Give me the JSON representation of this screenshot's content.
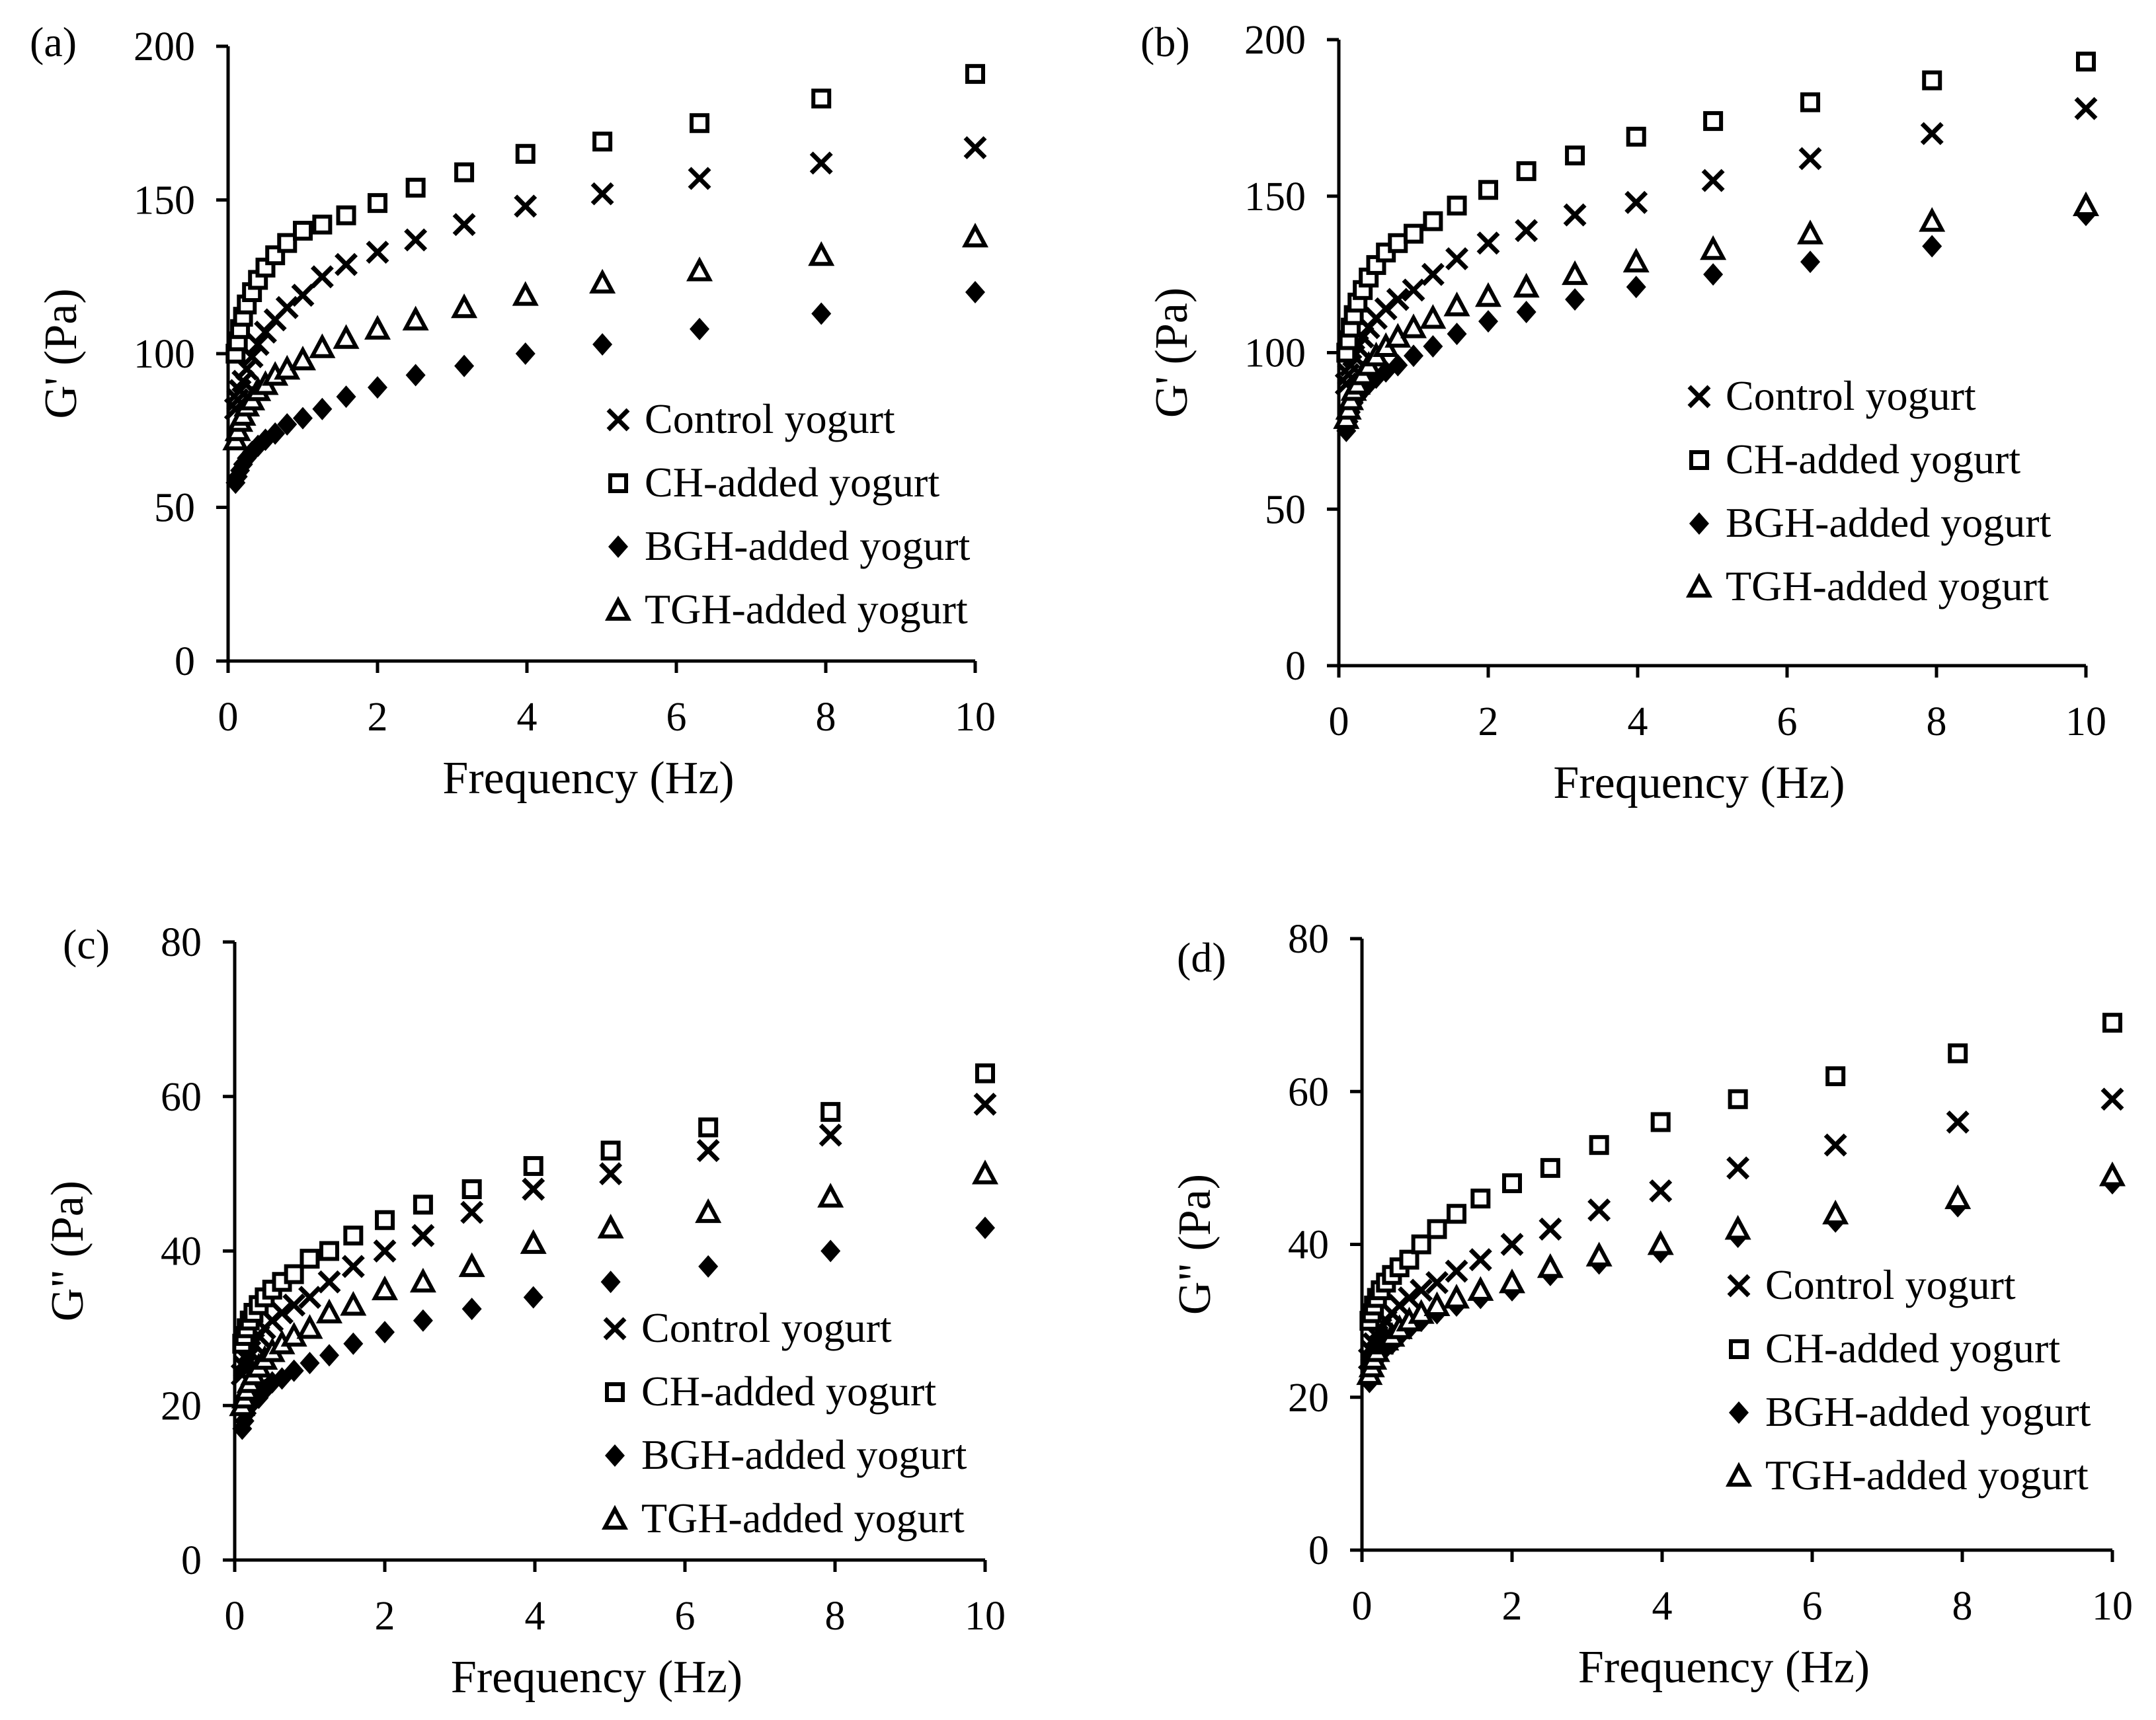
{
  "colors": {
    "ink": "#000000",
    "background": "#ffffff"
  },
  "chart_data": [
    {
      "panel_label": "(a)",
      "type": "scatter",
      "xlabel": "Frequency (Hz)",
      "ylabel": "G' (Pa)",
      "xlim": [
        0,
        10
      ],
      "ylim": [
        0,
        200
      ],
      "xticks": [
        "0",
        "2",
        "4",
        "6",
        "8",
        "10"
      ],
      "yticks": [
        "0",
        "50",
        "100",
        "150",
        "200"
      ],
      "grid": false,
      "legend_position": "bottom-right",
      "x": [
        0.1,
        0.13,
        0.16,
        0.2,
        0.25,
        0.32,
        0.4,
        0.5,
        0.63,
        0.79,
        1.0,
        1.26,
        1.58,
        2.0,
        2.51,
        3.16,
        3.98,
        5.01,
        6.31,
        7.94,
        10.0
      ],
      "series": [
        {
          "name": "Control yogurt",
          "marker": "x",
          "values": [
            82,
            85,
            88,
            91,
            95,
            99,
            103,
            107,
            111,
            115,
            119,
            125,
            129,
            133,
            137,
            142,
            148,
            152,
            157,
            162,
            167
          ]
        },
        {
          "name": "CH-added yogurt",
          "marker": "square",
          "values": [
            100,
            104,
            108,
            112,
            116,
            120,
            124,
            128,
            132,
            136,
            140,
            142,
            145,
            149,
            154,
            159,
            165,
            169,
            175,
            183,
            191
          ]
        },
        {
          "name": "BGH-added yogurt",
          "marker": "diamond",
          "values": [
            58,
            60,
            62,
            64,
            66,
            68,
            70,
            72,
            74,
            77,
            79,
            82,
            86,
            89,
            93,
            96,
            100,
            103,
            108,
            113,
            120
          ]
        },
        {
          "name": "TGH-added yogurt",
          "marker": "triangle",
          "values": [
            72,
            75,
            78,
            80,
            83,
            85,
            88,
            90,
            93,
            95,
            98,
            102,
            105,
            108,
            111,
            115,
            119,
            123,
            127,
            132,
            138
          ]
        }
      ]
    },
    {
      "panel_label": "(b)",
      "type": "scatter",
      "xlabel": "Frequency (Hz)",
      "ylabel": "G' (Pa)",
      "xlim": [
        0,
        10
      ],
      "ylim": [
        0,
        200
      ],
      "xticks": [
        "0",
        "2",
        "4",
        "6",
        "8",
        "10"
      ],
      "yticks": [
        "0",
        "50",
        "100",
        "150",
        "200"
      ],
      "grid": false,
      "legend_position": "bottom-right",
      "x": [
        0.1,
        0.13,
        0.16,
        0.2,
        0.25,
        0.32,
        0.4,
        0.5,
        0.63,
        0.79,
        1.0,
        1.26,
        1.58,
        2.0,
        2.51,
        3.16,
        3.98,
        5.01,
        6.31,
        7.94,
        10.0
      ],
      "series": [
        {
          "name": "Control yogurt",
          "marker": "x",
          "values": [
            90,
            93,
            96,
            99,
            102,
            105,
            108,
            111,
            114,
            117,
            120,
            125,
            130,
            135,
            139,
            144,
            148,
            155,
            162,
            170,
            178
          ]
        },
        {
          "name": "CH-added yogurt",
          "marker": "square",
          "values": [
            100,
            104,
            108,
            112,
            116,
            120,
            124,
            128,
            132,
            135,
            138,
            142,
            147,
            152,
            158,
            163,
            169,
            174,
            180,
            187,
            193
          ]
        },
        {
          "name": "BGH-added yogurt",
          "marker": "diamond",
          "values": [
            75,
            78,
            81,
            84,
            86,
            88,
            90,
            92,
            94,
            96,
            99,
            102,
            106,
            110,
            113,
            117,
            121,
            125,
            129,
            134,
            144
          ]
        },
        {
          "name": "TGH-added yogurt",
          "marker": "triangle",
          "values": [
            79,
            82,
            85,
            88,
            90,
            93,
            96,
            99,
            102,
            105,
            108,
            111,
            115,
            118,
            121,
            125,
            129,
            133,
            138,
            142,
            147
          ]
        }
      ]
    },
    {
      "panel_label": "(c)",
      "type": "scatter",
      "xlabel": "Frequency (Hz)",
      "ylabel": "G\" (Pa)",
      "xlim": [
        0,
        10
      ],
      "ylim": [
        0,
        80
      ],
      "xticks": [
        "0",
        "2",
        "4",
        "6",
        "8",
        "10"
      ],
      "yticks": [
        "0",
        "20",
        "40",
        "60",
        "80"
      ],
      "grid": false,
      "legend_position": "bottom-right",
      "x": [
        0.1,
        0.13,
        0.16,
        0.2,
        0.25,
        0.32,
        0.4,
        0.5,
        0.63,
        0.79,
        1.0,
        1.26,
        1.58,
        2.0,
        2.51,
        3.16,
        3.98,
        5.01,
        6.31,
        7.94,
        10.0
      ],
      "series": [
        {
          "name": "Control yogurt",
          "marker": "x",
          "values": [
            24,
            25,
            26,
            27,
            28,
            29,
            30,
            31,
            32,
            33,
            34,
            36,
            38,
            40,
            42,
            45,
            48,
            50,
            53,
            55,
            59
          ]
        },
        {
          "name": "CH-added yogurt",
          "marker": "square",
          "values": [
            28,
            29,
            30,
            31,
            32,
            33,
            34,
            35,
            36,
            37,
            39,
            40,
            42,
            44,
            46,
            48,
            51,
            53,
            56,
            58,
            63
          ]
        },
        {
          "name": "BGH-added yogurt",
          "marker": "diamond",
          "values": [
            17,
            18,
            19,
            20,
            20.5,
            21,
            22,
            23,
            23.5,
            24.5,
            25.5,
            26.5,
            28,
            29.5,
            31,
            32.5,
            34,
            36,
            38,
            40,
            43
          ]
        },
        {
          "name": "TGH-added yogurt",
          "marker": "triangle",
          "values": [
            20,
            21,
            22,
            23,
            24,
            25,
            26,
            27,
            28,
            29,
            30,
            32,
            33,
            35,
            36,
            38,
            41,
            43,
            45,
            47,
            50
          ]
        }
      ]
    },
    {
      "panel_label": "(d)",
      "type": "scatter",
      "xlabel": "Frequency (Hz)",
      "ylabel": "G\" (Pa)",
      "xlim": [
        0,
        10
      ],
      "ylim": [
        0,
        80
      ],
      "xticks": [
        "0",
        "2",
        "4",
        "6",
        "8",
        "10"
      ],
      "yticks": [
        "0",
        "20",
        "40",
        "60",
        "80"
      ],
      "grid": false,
      "legend_position": "bottom-right",
      "x": [
        0.1,
        0.13,
        0.16,
        0.2,
        0.25,
        0.32,
        0.4,
        0.5,
        0.63,
        0.79,
        1.0,
        1.26,
        1.58,
        2.0,
        2.51,
        3.16,
        3.98,
        5.01,
        6.31,
        7.94,
        10.0
      ],
      "series": [
        {
          "name": "Control yogurt",
          "marker": "x",
          "values": [
            25,
            26,
            27,
            28,
            29,
            30,
            31,
            32,
            33,
            34,
            35,
            36.5,
            38,
            40,
            42,
            44.5,
            47,
            50,
            53,
            56,
            59
          ]
        },
        {
          "name": "CH-added yogurt",
          "marker": "square",
          "values": [
            30,
            31,
            32,
            33,
            34,
            35,
            36,
            37,
            38,
            40,
            42,
            44,
            46,
            48,
            50,
            53,
            56,
            59,
            62,
            65,
            69
          ]
        },
        {
          "name": "BGH-added yogurt",
          "marker": "diamond",
          "values": [
            22,
            23,
            24,
            25,
            26,
            26.5,
            27,
            28,
            29,
            30,
            31,
            32,
            33,
            34,
            36,
            37.5,
            39,
            41,
            43,
            45,
            48
          ]
        },
        {
          "name": "TGH-added yogurt",
          "marker": "triangle",
          "values": [
            23,
            24,
            25,
            26,
            27,
            27.5,
            28,
            29,
            30,
            31,
            32,
            33,
            34,
            35,
            37,
            38.5,
            40,
            42,
            44,
            46,
            49
          ]
        }
      ]
    }
  ]
}
